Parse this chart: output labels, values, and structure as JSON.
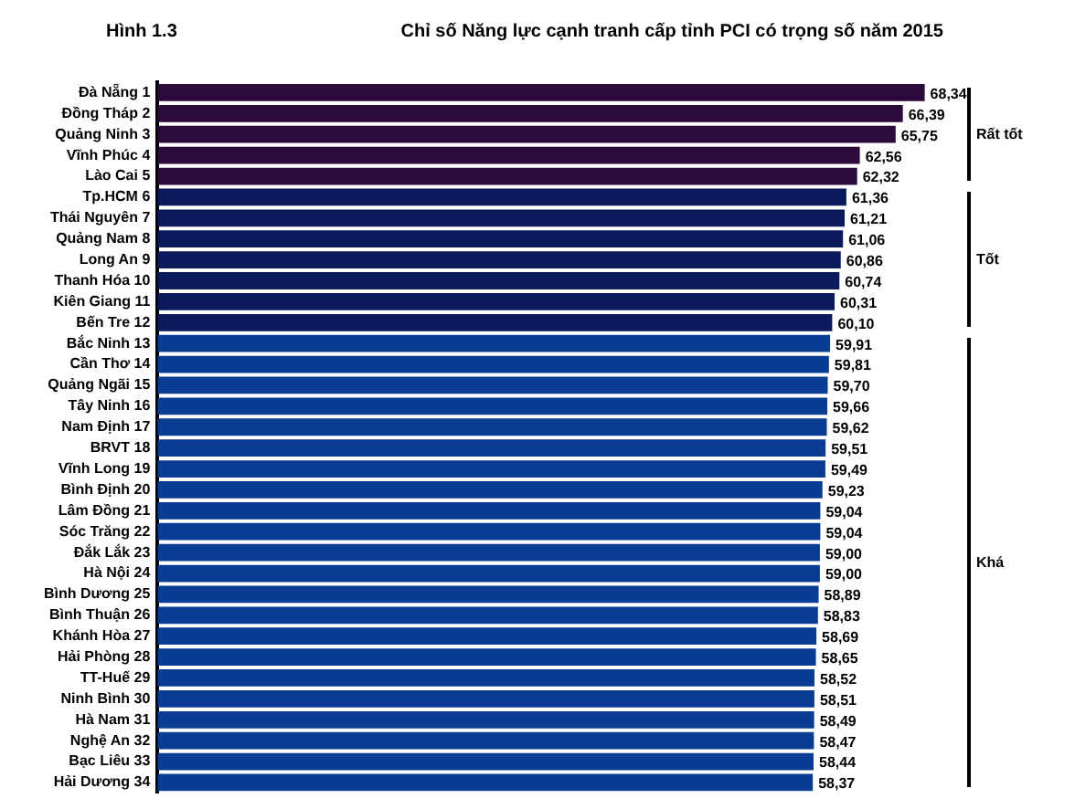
{
  "chart_data": {
    "type": "bar",
    "orientation": "horizontal",
    "title": "Chỉ số Năng lực cạnh tranh cấp tỉnh PCI có trọng số năm 2015",
    "annotations": [
      "Hình 1.3",
      "Rất tốt",
      "Tốt",
      "Khá"
    ],
    "categories": [
      "Đà Nẵng 1",
      "Đồng Tháp 2",
      "Quảng Ninh 3",
      "Vĩnh Phúc 4",
      "Lào Cai 5",
      "Tp.HCM 6",
      "Thái Nguyên 7",
      "Quảng Nam 8",
      "Long An 9",
      "Thanh Hóa 10",
      "Kiên Giang 11",
      "Bến Tre 12",
      "Bắc Ninh 13",
      "Cần Thơ 14",
      "Quảng Ngãi 15",
      "Tây Ninh 16",
      "Nam Định 17",
      "BRVT 18",
      "Vĩnh Long 19",
      "Bình Định 20",
      "Lâm Đồng 21",
      "Sóc Trăng 22",
      "Đắk Lắk 23",
      "Hà Nội 24",
      "Bình Dương 25",
      "Bình Thuận 26",
      "Khánh Hòa 27",
      "Hải Phòng 28",
      "TT-Huế 29",
      "Ninh Bình 30",
      "Hà Nam 31",
      "Nghệ An 32",
      "Bạc Liêu 33",
      "Hải Dương 34"
    ],
    "values": [
      68.34,
      66.39,
      65.75,
      62.56,
      62.32,
      61.36,
      61.21,
      61.06,
      60.86,
      60.74,
      60.31,
      60.1,
      59.91,
      59.81,
      59.7,
      59.66,
      59.62,
      59.51,
      59.49,
      59.23,
      59.04,
      59.04,
      59.0,
      59.0,
      58.89,
      58.83,
      58.69,
      58.65,
      58.52,
      58.51,
      58.49,
      58.47,
      58.44,
      58.37
    ],
    "value_labels": [
      "68,34",
      "66,39",
      "65,75",
      "62,56",
      "62,32",
      "61,36",
      "61,21",
      "61,06",
      "60,86",
      "60,74",
      "60,31",
      "60,10",
      "59,91",
      "59,81",
      "59,70",
      "59,66",
      "59,62",
      "59,51",
      "59,49",
      "59,23",
      "59,04",
      "59,04",
      "59,00",
      "59,00",
      "58,89",
      "58,83",
      "58,69",
      "58,65",
      "58,52",
      "58,51",
      "58,49",
      "58,47",
      "58,44",
      "58,37"
    ],
    "colors": [
      "#2d0a3c",
      "#2d0a3c",
      "#2d0a3c",
      "#2d0a3c",
      "#2d0a3c",
      "#0b1a5c",
      "#0b1a5c",
      "#0b1a5c",
      "#0b1a5c",
      "#0b1a5c",
      "#0b1a5c",
      "#0b1a5c",
      "#0a3c94",
      "#0a3c94",
      "#0a3c94",
      "#0a3c94",
      "#0a3c94",
      "#0a3c94",
      "#0a3c94",
      "#0a3c94",
      "#0a3c94",
      "#0a3c94",
      "#0a3c94",
      "#0a3c94",
      "#0a3c94",
      "#0a3c94",
      "#0a3c94",
      "#0a3c94",
      "#0a3c94",
      "#0a3c94",
      "#0a3c94",
      "#0a3c94",
      "#0a3c94",
      "#0a3c94"
    ],
    "grid": false,
    "legend": false,
    "tick_labels": "y"
  }
}
